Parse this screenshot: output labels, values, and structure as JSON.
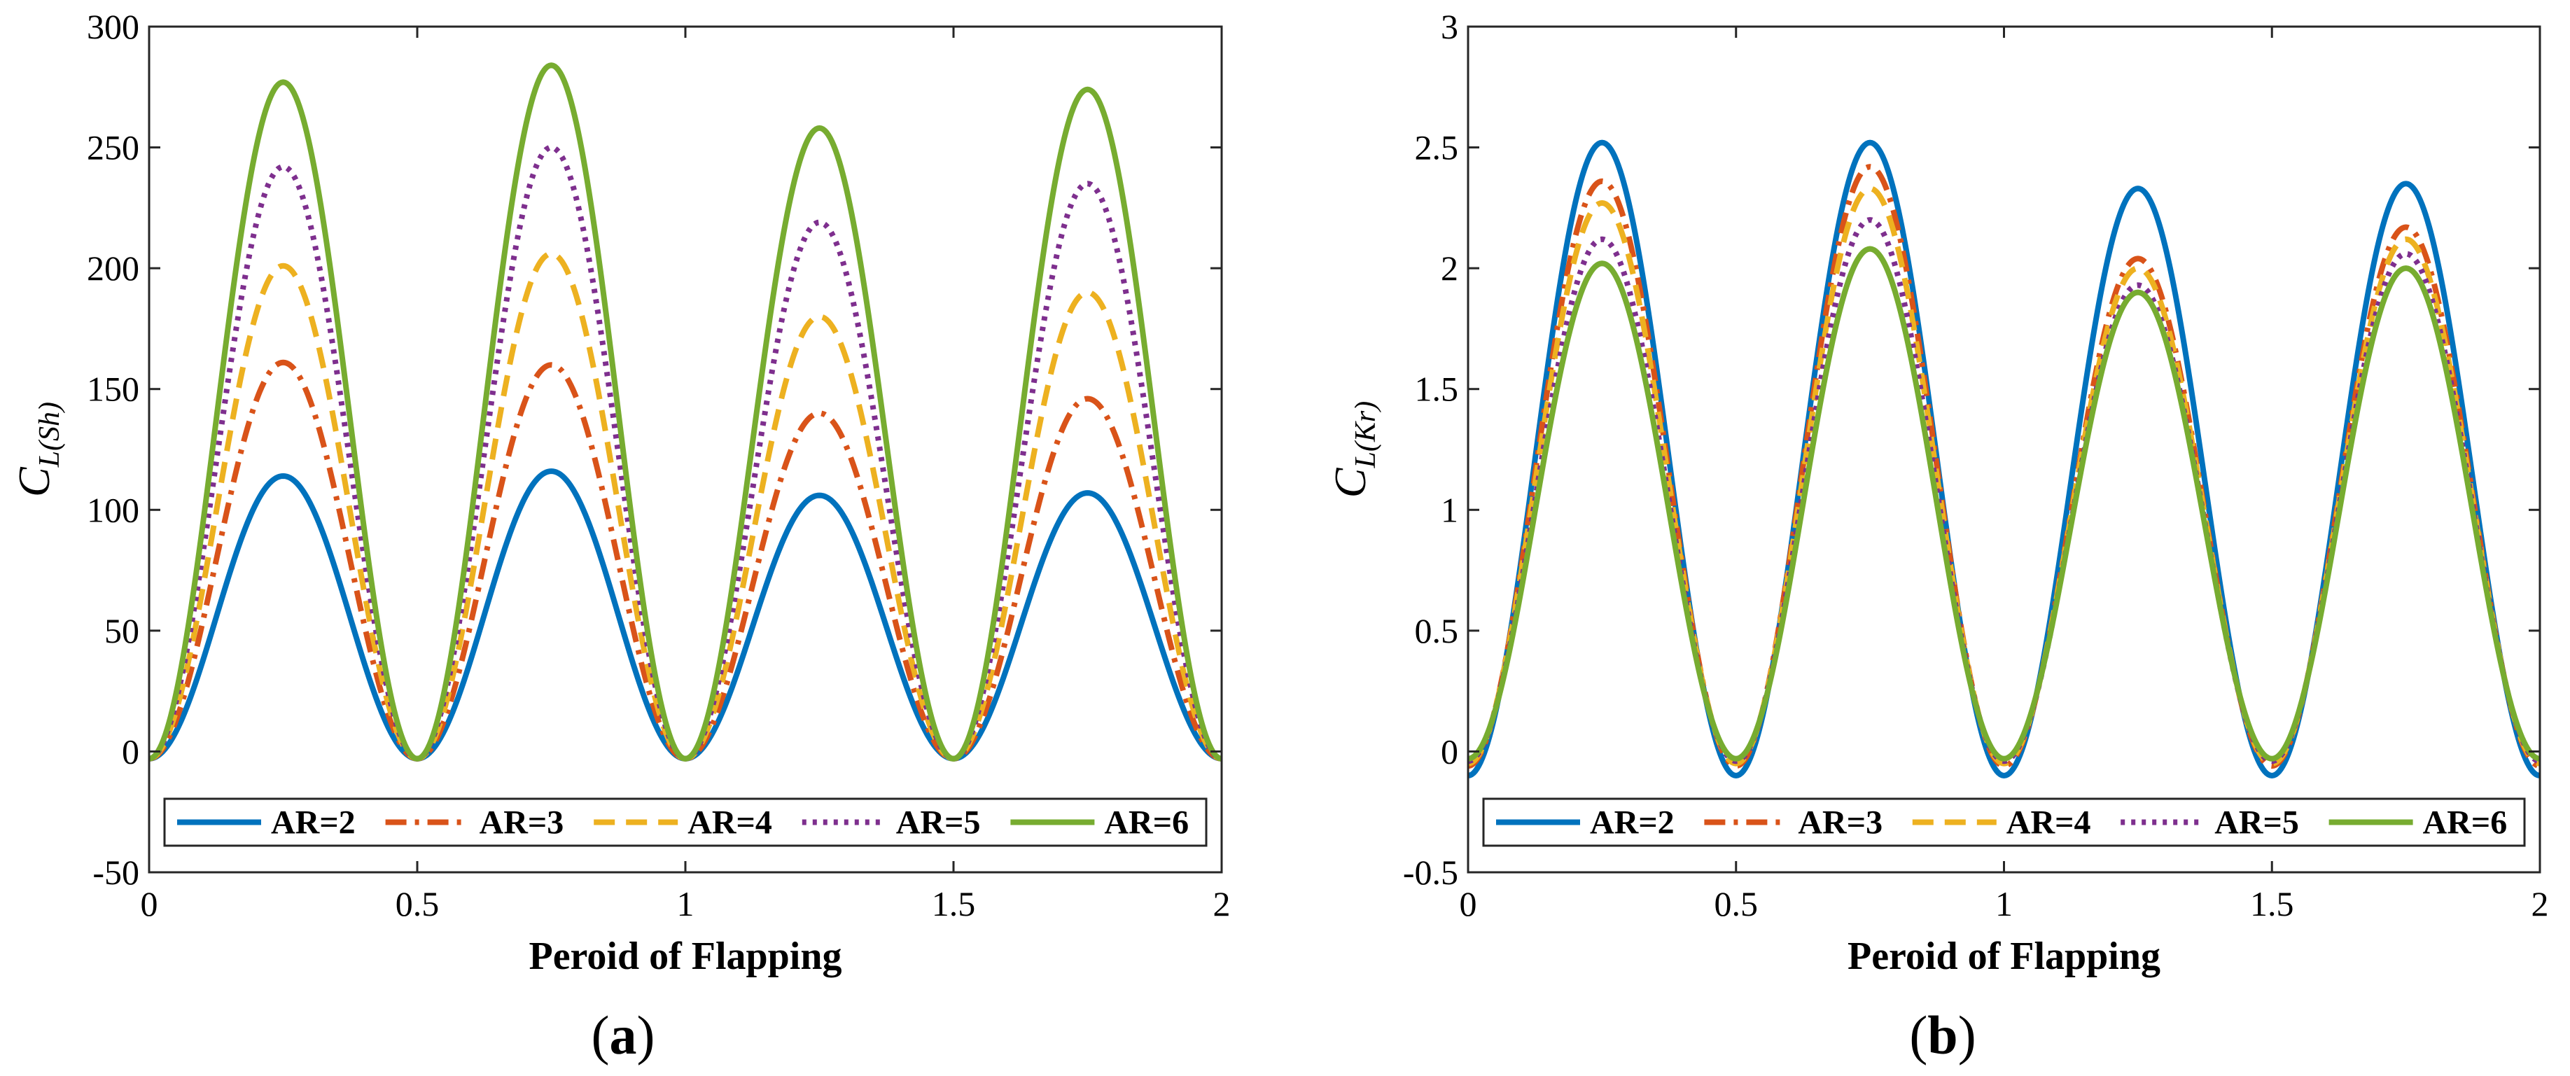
{
  "chart_data": [
    {
      "type": "line",
      "panel_label": "a",
      "xlabel": "Peroid of Flapping",
      "ylabel_main": "C",
      "ylabel_sub": "L(Sh)",
      "xlim": [
        0,
        2
      ],
      "ylim": [
        -50,
        300
      ],
      "xticks": [
        0,
        0.5,
        1,
        1.5,
        2
      ],
      "yticks": [
        -50,
        0,
        50,
        100,
        150,
        200,
        250,
        300
      ],
      "grid": false,
      "legend_position": "bottom",
      "series": [
        {
          "name": "AR=2",
          "color": "#0072BD",
          "dash": "solid",
          "baseline": -3,
          "peaks": [
            114,
            116,
            106,
            107
          ]
        },
        {
          "name": "AR=3",
          "color": "#D95319",
          "dash": "dashdot",
          "baseline": -3,
          "peaks": [
            161,
            160,
            140,
            146
          ]
        },
        {
          "name": "AR=4",
          "color": "#EDB120",
          "dash": "dashed",
          "baseline": -3,
          "peaks": [
            201,
            206,
            180,
            190
          ]
        },
        {
          "name": "AR=5",
          "color": "#7E2F8E",
          "dash": "dotted",
          "baseline": -3,
          "peaks": [
            242,
            250,
            219,
            235
          ]
        },
        {
          "name": "AR=6",
          "color": "#77AC30",
          "dash": "solid",
          "baseline": -3,
          "peaks": [
            277,
            284,
            258,
            274
          ]
        }
      ]
    },
    {
      "type": "line",
      "panel_label": "b",
      "xlabel": "Peroid of Flapping",
      "ylabel_main": "C",
      "ylabel_sub": "L(Kr)",
      "xlim": [
        0,
        2
      ],
      "ylim": [
        -0.5,
        3
      ],
      "xticks": [
        0,
        0.5,
        1,
        1.5,
        2
      ],
      "yticks": [
        -0.5,
        0,
        0.5,
        1,
        1.5,
        2,
        2.5,
        3
      ],
      "grid": false,
      "legend_position": "bottom",
      "series": [
        {
          "name": "AR=2",
          "color": "#0072BD",
          "dash": "solid",
          "baseline": -0.1,
          "peaks": [
            2.52,
            2.52,
            2.33,
            2.35
          ]
        },
        {
          "name": "AR=3",
          "color": "#D95319",
          "dash": "dashdot",
          "baseline": -0.06,
          "peaks": [
            2.36,
            2.42,
            2.04,
            2.17
          ]
        },
        {
          "name": "AR=4",
          "color": "#EDB120",
          "dash": "dashed",
          "baseline": -0.05,
          "peaks": [
            2.27,
            2.33,
            2.0,
            2.12
          ]
        },
        {
          "name": "AR=5",
          "color": "#7E2F8E",
          "dash": "dotted",
          "baseline": -0.04,
          "peaks": [
            2.12,
            2.2,
            1.93,
            2.06
          ]
        },
        {
          "name": "AR=6",
          "color": "#77AC30",
          "dash": "solid",
          "baseline": -0.03,
          "peaks": [
            2.02,
            2.08,
            1.9,
            2.0
          ]
        }
      ]
    }
  ]
}
